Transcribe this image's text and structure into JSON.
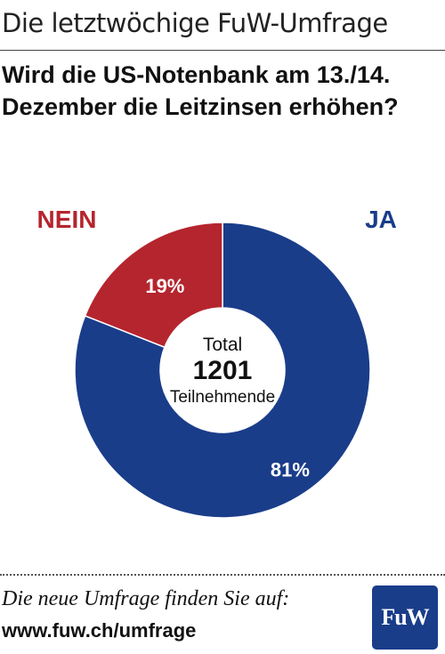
{
  "header": {
    "title": "Die letztwöchige FuW-Umfrage"
  },
  "question": "Wird die US-Notenbank am 13./14. Dezember die Leitzinsen erhöhen?",
  "chart_data": {
    "type": "pie",
    "donut": true,
    "categories": [
      "JA",
      "NEIN"
    ],
    "values": [
      81,
      19
    ],
    "value_labels": [
      "81%",
      "19%"
    ],
    "colors": [
      "#1a3d8a",
      "#b5252e"
    ],
    "center": {
      "line1": "Total",
      "line2": "1201",
      "line3": "Teilnehmende"
    }
  },
  "footer": {
    "text": "Die neue Umfrage finden Sie auf:",
    "url": "www.fuw.ch/umfrage",
    "logo": "FuW"
  }
}
